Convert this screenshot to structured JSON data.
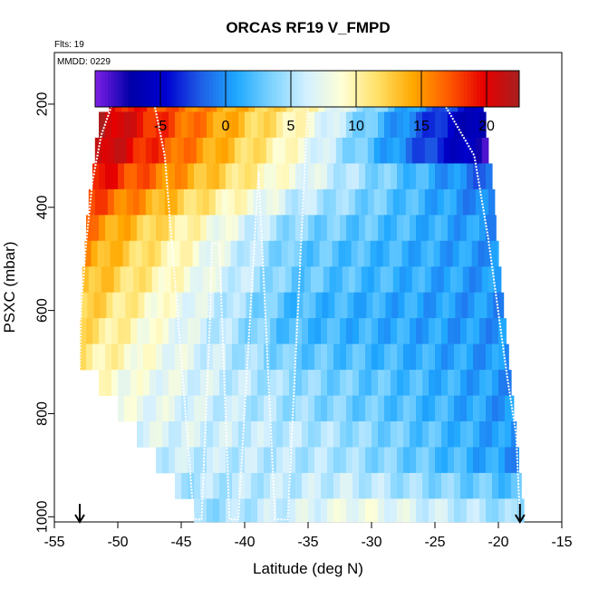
{
  "chart_data": {
    "type": "heatmap",
    "title": "ORCAS RF19 V_FMPD",
    "subtitle": "Flts: 19",
    "annotation": "MMDD: 0229",
    "xlabel": "Latitude (deg N)",
    "ylabel": "PSXC (mbar)",
    "xlim": [
      -55,
      -15
    ],
    "ylim": [
      1010,
      100
    ],
    "x_ticks": [
      -55,
      -50,
      -45,
      -40,
      -35,
      -30,
      -25,
      -20,
      -15
    ],
    "y_ticks": [
      200,
      400,
      600,
      800,
      1000
    ],
    "colorbar": {
      "range": [
        -10,
        22.5
      ],
      "ticks": [
        -5,
        0,
        5,
        10,
        15,
        20
      ],
      "colors": [
        "#7f1fe6",
        "#0000a8",
        "#0000d0",
        "#1f5fe6",
        "#1fa8ff",
        "#7fd4ff",
        "#d4f0ff",
        "#ffffd4",
        "#ffe066",
        "#ffa800",
        "#ff5a00",
        "#e60000",
        "#a81f1f"
      ]
    },
    "pressure_levels": [
      180,
      230,
      280,
      330,
      380,
      430,
      480,
      530,
      580,
      630,
      680,
      730,
      780,
      830,
      880,
      930,
      980,
      1010
    ],
    "rows": [
      {
        "p0": 165,
        "p1": 215,
        "lat_min": -50.7,
        "lat_max": -21.2,
        "v_south": 20,
        "v_mid": 11,
        "v_north": -6
      },
      {
        "p0": 215,
        "p1": 265,
        "lat_min": -51.5,
        "lat_max": -21.0,
        "v_south": 22,
        "v_mid": 10,
        "v_north": -8
      },
      {
        "p0": 265,
        "p1": 315,
        "lat_min": -51.8,
        "lat_max": -20.8,
        "v_south": 22,
        "v_mid": 9,
        "v_north": -8
      },
      {
        "p0": 315,
        "p1": 365,
        "lat_min": -52.0,
        "lat_max": -20.5,
        "v_south": 20,
        "v_mid": 8,
        "v_north": -2
      },
      {
        "p0": 365,
        "p1": 415,
        "lat_min": -52.3,
        "lat_max": -20.3,
        "v_south": 18,
        "v_mid": 6,
        "v_north": -1
      },
      {
        "p0": 415,
        "p1": 465,
        "lat_min": -52.5,
        "lat_max": -20.2,
        "v_south": 16,
        "v_mid": 4,
        "v_north": 0
      },
      {
        "p0": 465,
        "p1": 515,
        "lat_min": -52.6,
        "lat_max": -20.0,
        "v_south": 15,
        "v_mid": 3,
        "v_north": 0
      },
      {
        "p0": 515,
        "p1": 565,
        "lat_min": -52.8,
        "lat_max": -19.8,
        "v_south": 14,
        "v_mid": 3,
        "v_north": 0
      },
      {
        "p0": 565,
        "p1": 615,
        "lat_min": -52.9,
        "lat_max": -19.6,
        "v_south": 13,
        "v_mid": 2,
        "v_north": 0
      },
      {
        "p0": 615,
        "p1": 665,
        "lat_min": -53.0,
        "lat_max": -19.4,
        "v_south": 12,
        "v_mid": 2,
        "v_north": 0
      },
      {
        "p0": 665,
        "p1": 715,
        "lat_min": -53.0,
        "lat_max": -19.2,
        "v_south": 11,
        "v_mid": 3,
        "v_north": 0
      },
      {
        "p0": 715,
        "p1": 765,
        "lat_min": -51.5,
        "lat_max": -19.0,
        "v_south": 9,
        "v_mid": 4,
        "v_north": 0
      },
      {
        "p0": 765,
        "p1": 815,
        "lat_min": -50.0,
        "lat_max": -18.8,
        "v_south": 8,
        "v_mid": 4,
        "v_north": 0
      },
      {
        "p0": 815,
        "p1": 865,
        "lat_min": -48.5,
        "lat_max": -18.6,
        "v_south": 7,
        "v_mid": 5,
        "v_north": 0
      },
      {
        "p0": 865,
        "p1": 915,
        "lat_min": -47.0,
        "lat_max": -18.4,
        "v_south": 6,
        "v_mid": 5,
        "v_north": 0
      },
      {
        "p0": 915,
        "p1": 965,
        "lat_min": -45.5,
        "lat_max": -18.2,
        "v_south": 5,
        "v_mid": 6,
        "v_north": 2
      },
      {
        "p0": 965,
        "p1": 1010,
        "lat_min": -44.0,
        "lat_max": -18.0,
        "v_south": 4,
        "v_mid": 8,
        "v_north": 4
      }
    ],
    "flight_track": [
      [
        -53.0,
        730
      ],
      [
        -52.9,
        600
      ],
      [
        -52.5,
        470
      ],
      [
        -52.0,
        350
      ],
      [
        -51.3,
        260
      ],
      [
        -50.3,
        190
      ],
      [
        -47.2,
        190
      ],
      [
        -46.3,
        300
      ],
      [
        -45.3,
        600
      ],
      [
        -44.0,
        1005
      ],
      [
        -43.4,
        1005
      ],
      [
        -42.7,
        600
      ],
      [
        -42.6,
        470
      ],
      [
        -42.0,
        470
      ],
      [
        -41.2,
        1005
      ],
      [
        -40.5,
        1005
      ],
      [
        -38.9,
        330
      ],
      [
        -37.6,
        1005
      ],
      [
        -36.6,
        1005
      ],
      [
        -35.0,
        190
      ],
      [
        -24.5,
        190
      ],
      [
        -21.9,
        300
      ],
      [
        -20.8,
        460
      ],
      [
        -19.3,
        730
      ],
      [
        -18.6,
        840
      ],
      [
        -18.3,
        1005
      ]
    ],
    "arrows": [
      -53.0,
      -18.3
    ]
  }
}
